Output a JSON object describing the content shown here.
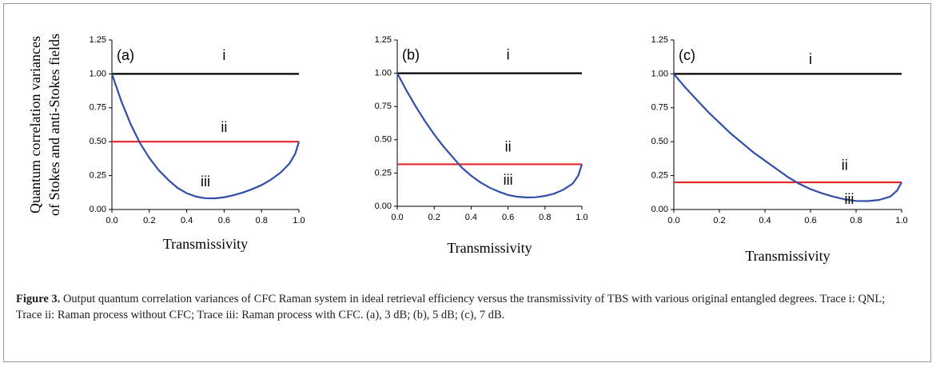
{
  "chart_data": [
    {
      "type": "line",
      "panel": "(a)",
      "ylabel": [
        "Quantum correlation variances",
        "of Stokes and anti-Stokes fields"
      ],
      "xlabel": "Transmissivity",
      "xlim": [
        0,
        1
      ],
      "ylim": [
        0,
        1.25
      ],
      "xticks": [
        {
          "value": 0,
          "label": "0.0"
        },
        {
          "value": 0.2,
          "label": "0.2"
        },
        {
          "value": 0.4,
          "label": "0.4"
        },
        {
          "value": 0.6,
          "label": "0.6"
        },
        {
          "value": 0.8,
          "label": "0.8"
        },
        {
          "value": 1,
          "label": "1.0"
        }
      ],
      "yticks": [
        {
          "value": 0,
          "label": "0.00"
        },
        {
          "value": 0.25,
          "label": "0.25"
        },
        {
          "value": 0.5,
          "label": "0.50"
        },
        {
          "value": 0.75,
          "label": "0.75"
        },
        {
          "value": 1,
          "label": "1.00"
        },
        {
          "value": 1.25,
          "label": "1.25"
        }
      ],
      "series": [
        {
          "name": "i",
          "color": "#000000",
          "x": [
            0,
            1
          ],
          "values": [
            1,
            1
          ]
        },
        {
          "name": "ii",
          "color": "#e8262a",
          "x": [
            0,
            1
          ],
          "values": [
            0.5,
            0.5
          ]
        },
        {
          "name": "iii",
          "color": "#2f4fa8",
          "x": [
            0,
            0.05,
            0.1,
            0.15,
            0.2,
            0.25,
            0.3,
            0.35,
            0.4,
            0.45,
            0.5,
            0.55,
            0.6,
            0.65,
            0.7,
            0.75,
            0.8,
            0.85,
            0.9,
            0.95,
            0.98,
            1
          ],
          "values": [
            1,
            0.8,
            0.63,
            0.49,
            0.38,
            0.29,
            0.22,
            0.16,
            0.12,
            0.095,
            0.083,
            0.082,
            0.09,
            0.105,
            0.125,
            0.15,
            0.18,
            0.22,
            0.27,
            0.34,
            0.41,
            0.5
          ]
        }
      ]
    },
    {
      "type": "line",
      "panel": "(b)",
      "xlabel": "Transmissivity",
      "xlim": [
        0,
        1
      ],
      "ylim": [
        0,
        1.25
      ],
      "xticks": [
        {
          "value": 0,
          "label": "0.0"
        },
        {
          "value": 0.2,
          "label": "0.2"
        },
        {
          "value": 0.4,
          "label": "0.4"
        },
        {
          "value": 0.6,
          "label": "0.6"
        },
        {
          "value": 0.8,
          "label": "0.8"
        },
        {
          "value": 1,
          "label": "1.0"
        }
      ],
      "yticks": [
        {
          "value": 0,
          "label": "0.00"
        },
        {
          "value": 0.25,
          "label": "0.25"
        },
        {
          "value": 0.5,
          "label": "0.50"
        },
        {
          "value": 0.75,
          "label": "0.75"
        },
        {
          "value": 1,
          "label": "1.00"
        },
        {
          "value": 1.25,
          "label": "1.25"
        }
      ],
      "series": [
        {
          "name": "i",
          "color": "#000000",
          "x": [
            0,
            1
          ],
          "values": [
            1,
            1
          ]
        },
        {
          "name": "ii",
          "color": "#e8262a",
          "x": [
            0,
            1
          ],
          "values": [
            0.316,
            0.316
          ]
        },
        {
          "name": "iii",
          "color": "#2f4fa8",
          "x": [
            0,
            0.05,
            0.1,
            0.15,
            0.2,
            0.25,
            0.3,
            0.35,
            0.4,
            0.45,
            0.5,
            0.55,
            0.6,
            0.65,
            0.7,
            0.75,
            0.8,
            0.85,
            0.9,
            0.95,
            0.98,
            1
          ],
          "values": [
            1,
            0.87,
            0.75,
            0.64,
            0.54,
            0.45,
            0.37,
            0.29,
            0.23,
            0.18,
            0.14,
            0.11,
            0.085,
            0.072,
            0.066,
            0.068,
            0.078,
            0.095,
            0.125,
            0.17,
            0.23,
            0.316
          ]
        }
      ]
    },
    {
      "type": "line",
      "panel": "(c)",
      "xlabel": "Transmissivity",
      "xlim": [
        0,
        1
      ],
      "ylim": [
        0,
        1.25
      ],
      "xticks": [
        {
          "value": 0,
          "label": "0.0"
        },
        {
          "value": 0.2,
          "label": "0.2"
        },
        {
          "value": 0.4,
          "label": "0.4"
        },
        {
          "value": 0.6,
          "label": "0.6"
        },
        {
          "value": 0.8,
          "label": "0.8"
        },
        {
          "value": 1,
          "label": "1.0"
        }
      ],
      "yticks": [
        {
          "value": 0,
          "label": "0.00"
        },
        {
          "value": 0.25,
          "label": "0.25"
        },
        {
          "value": 0.5,
          "label": "0.50"
        },
        {
          "value": 0.75,
          "label": "0.75"
        },
        {
          "value": 1,
          "label": "1.00"
        },
        {
          "value": 1.25,
          "label": "1.25"
        }
      ],
      "series": [
        {
          "name": "i",
          "color": "#000000",
          "x": [
            0,
            1
          ],
          "values": [
            1,
            1
          ]
        },
        {
          "name": "ii",
          "color": "#e8262a",
          "x": [
            0,
            1
          ],
          "values": [
            0.2,
            0.2
          ]
        },
        {
          "name": "iii",
          "color": "#2f4fa8",
          "x": [
            0,
            0.05,
            0.1,
            0.15,
            0.2,
            0.25,
            0.3,
            0.35,
            0.4,
            0.45,
            0.5,
            0.55,
            0.6,
            0.65,
            0.7,
            0.75,
            0.8,
            0.85,
            0.9,
            0.95,
            0.98,
            1
          ],
          "values": [
            1,
            0.9,
            0.81,
            0.72,
            0.64,
            0.56,
            0.49,
            0.42,
            0.36,
            0.3,
            0.24,
            0.19,
            0.15,
            0.12,
            0.095,
            0.075,
            0.063,
            0.062,
            0.07,
            0.095,
            0.14,
            0.2
          ]
        }
      ]
    }
  ],
  "caption": {
    "label": "Figure 3.",
    "text": "Output quantum correlation variances of CFC Raman system in ideal retrieval efficiency versus the transmissivity of TBS with various original entangled degrees. Trace i: QNL; Trace ii: Raman process without CFC; Trace iii: Raman process with CFC. (a), 3 dB; (b), 5 dB; (c), 7 dB."
  }
}
